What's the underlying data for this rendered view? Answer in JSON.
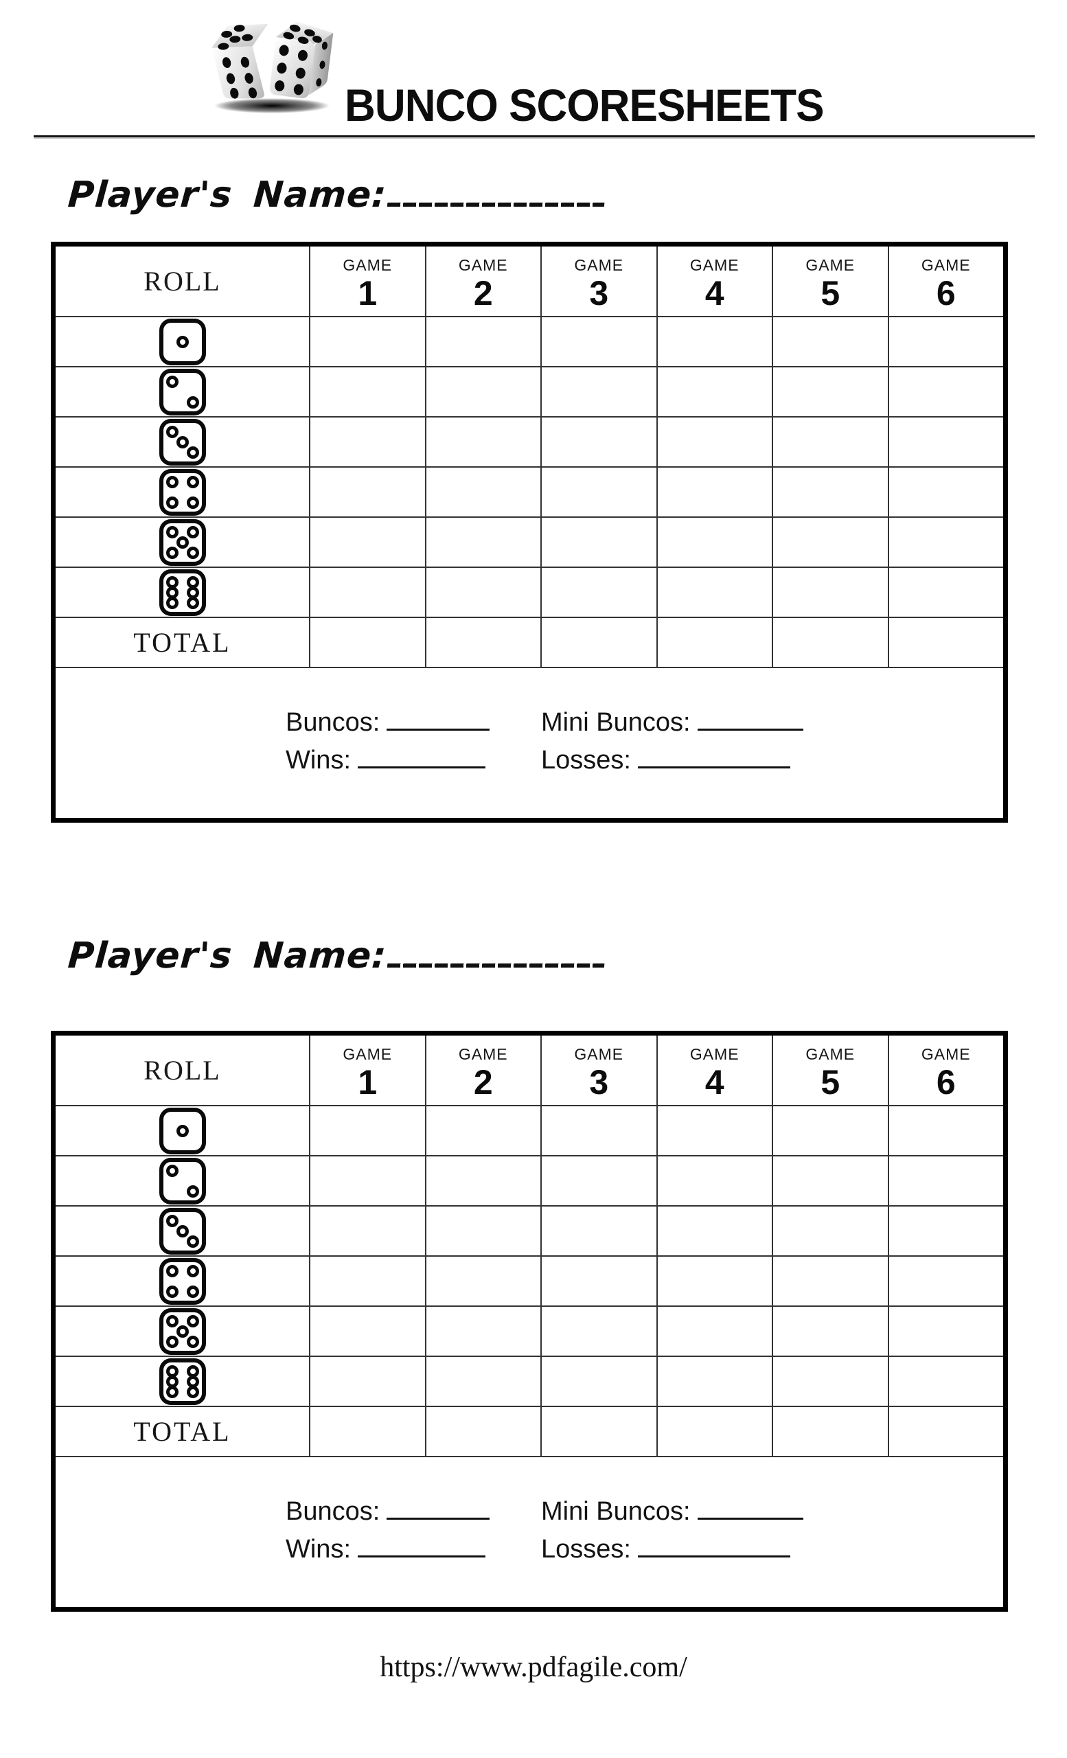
{
  "header": {
    "title": "BUNCO SCORESHEETS",
    "logo": "two-dice-with-shadow"
  },
  "sheets": [
    {
      "player_name_label": "Player's Name:",
      "roll_header": "ROLL",
      "games": [
        {
          "word": "GAME",
          "num": "1"
        },
        {
          "word": "GAME",
          "num": "2"
        },
        {
          "word": "GAME",
          "num": "3"
        },
        {
          "word": "GAME",
          "num": "4"
        },
        {
          "word": "GAME",
          "num": "5"
        },
        {
          "word": "GAME",
          "num": "6"
        }
      ],
      "dice_rolls": [
        1,
        2,
        3,
        4,
        5,
        6
      ],
      "total_label": "TOTAL",
      "stats": {
        "buncos": "Buncos:",
        "mini_buncos": "Mini Buncos:",
        "wins": "Wins:",
        "losses": "Losses:"
      }
    },
    {
      "player_name_label": "Player's Name:",
      "roll_header": "ROLL",
      "games": [
        {
          "word": "GAME",
          "num": "1"
        },
        {
          "word": "GAME",
          "num": "2"
        },
        {
          "word": "GAME",
          "num": "3"
        },
        {
          "word": "GAME",
          "num": "4"
        },
        {
          "word": "GAME",
          "num": "5"
        },
        {
          "word": "GAME",
          "num": "6"
        }
      ],
      "dice_rolls": [
        1,
        2,
        3,
        4,
        5,
        6
      ],
      "total_label": "TOTAL",
      "stats": {
        "buncos": "Buncos:",
        "mini_buncos": "Mini Buncos:",
        "wins": "Wins:",
        "losses": "Losses:"
      }
    }
  ],
  "footer": {
    "url": "https://www.pdfagile.com/"
  }
}
